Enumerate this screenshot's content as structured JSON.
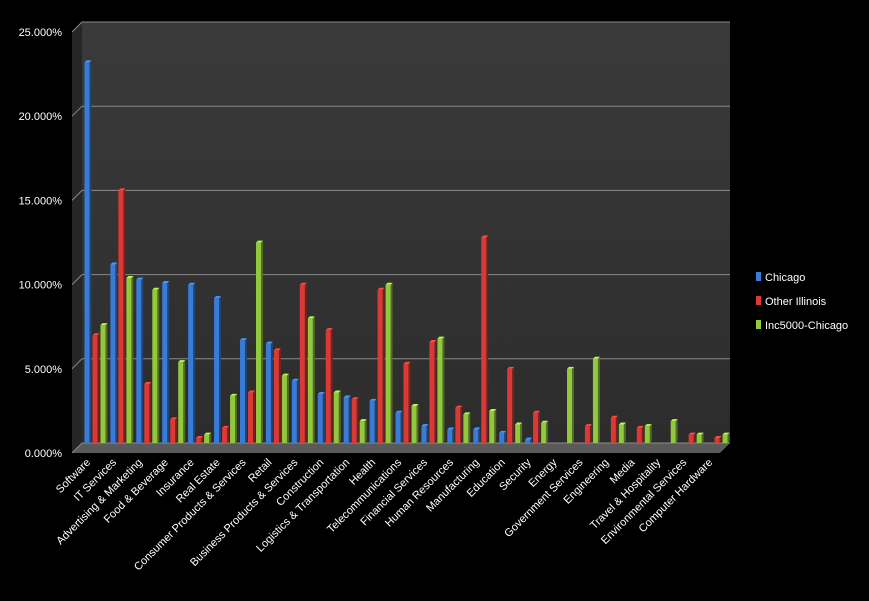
{
  "chart_data": {
    "type": "bar",
    "title": "",
    "xlabel": "",
    "ylabel": "",
    "ylim": [
      0,
      25
    ],
    "y_ticks": [
      "0.000%",
      "5.000%",
      "10.000%",
      "15.000%",
      "20.000%",
      "25.000%"
    ],
    "grid": true,
    "legend_position": "right",
    "categories": [
      "Software",
      "IT Services",
      "Advertising & Marketing",
      "Food & Beverage",
      "Insurance",
      "Real Estate",
      "Consumer Products & Services",
      "Retail",
      "Business Products & Services",
      "Construction",
      "Logistics & Transportation",
      "Health",
      "Telecommunications",
      "Financial Services",
      "Human Resources",
      "Manufacturing",
      "Education",
      "Security",
      "Energy",
      "Government Services",
      "Engineering",
      "Media",
      "Travel & Hospitality",
      "Environmental Services",
      "Computer Hardware"
    ],
    "series": [
      {
        "name": "Chicago",
        "color": "#3a7bd5",
        "values": [
          22.6,
          10.6,
          9.7,
          9.5,
          9.4,
          8.6,
          6.1,
          5.9,
          3.7,
          2.9,
          2.7,
          2.5,
          1.8,
          1.0,
          0.8,
          0.8,
          0.6,
          0.2,
          0.0,
          0.0,
          0.0,
          0.0,
          0.0,
          0.0,
          0.0
        ]
      },
      {
        "name": "Other Illinois",
        "color": "#d93a35",
        "values": [
          6.4,
          15.0,
          3.5,
          1.4,
          0.3,
          0.9,
          3.0,
          5.5,
          9.4,
          6.7,
          2.6,
          9.1,
          4.7,
          6.0,
          2.1,
          12.2,
          4.4,
          1.8,
          0.0,
          1.0,
          1.5,
          0.9,
          0.0,
          0.5,
          0.3
        ]
      },
      {
        "name": "Inc5000-Chicago",
        "color": "#92c83e",
        "values": [
          7.0,
          9.8,
          9.1,
          4.8,
          0.5,
          2.8,
          11.9,
          4.0,
          7.4,
          3.0,
          1.3,
          9.4,
          2.2,
          6.2,
          1.7,
          1.9,
          1.1,
          1.2,
          4.4,
          5.0,
          1.1,
          1.0,
          1.3,
          0.5,
          0.5
        ]
      }
    ]
  }
}
